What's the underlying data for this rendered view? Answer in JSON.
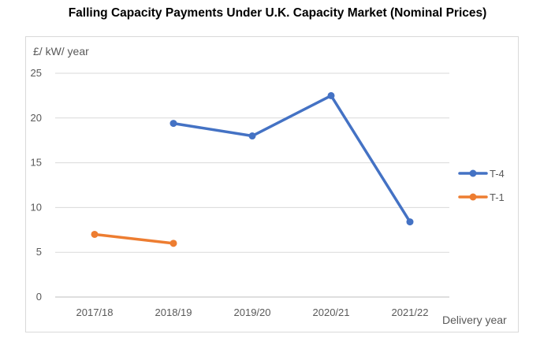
{
  "chart_data": {
    "type": "line",
    "title": "Falling Capacity Payments Under U.K. Capacity Market (Nominal Prices)",
    "ylabel": "£/ kW/ year",
    "xlabel": "Delivery year",
    "categories": [
      "2017/18",
      "2018/19",
      "2019/20",
      "2020/21",
      "2021/22"
    ],
    "ylim": [
      0,
      25
    ],
    "yticks": [
      0,
      5,
      10,
      15,
      20,
      25
    ],
    "grid": true,
    "legend_position": "right",
    "series": [
      {
        "name": "T-4",
        "color": "#4472C4",
        "values": [
          null,
          19.4,
          18.0,
          22.5,
          8.4
        ]
      },
      {
        "name": "T-1",
        "color": "#ED7D31",
        "values": [
          7.0,
          6.0,
          null,
          null,
          null
        ]
      }
    ]
  }
}
